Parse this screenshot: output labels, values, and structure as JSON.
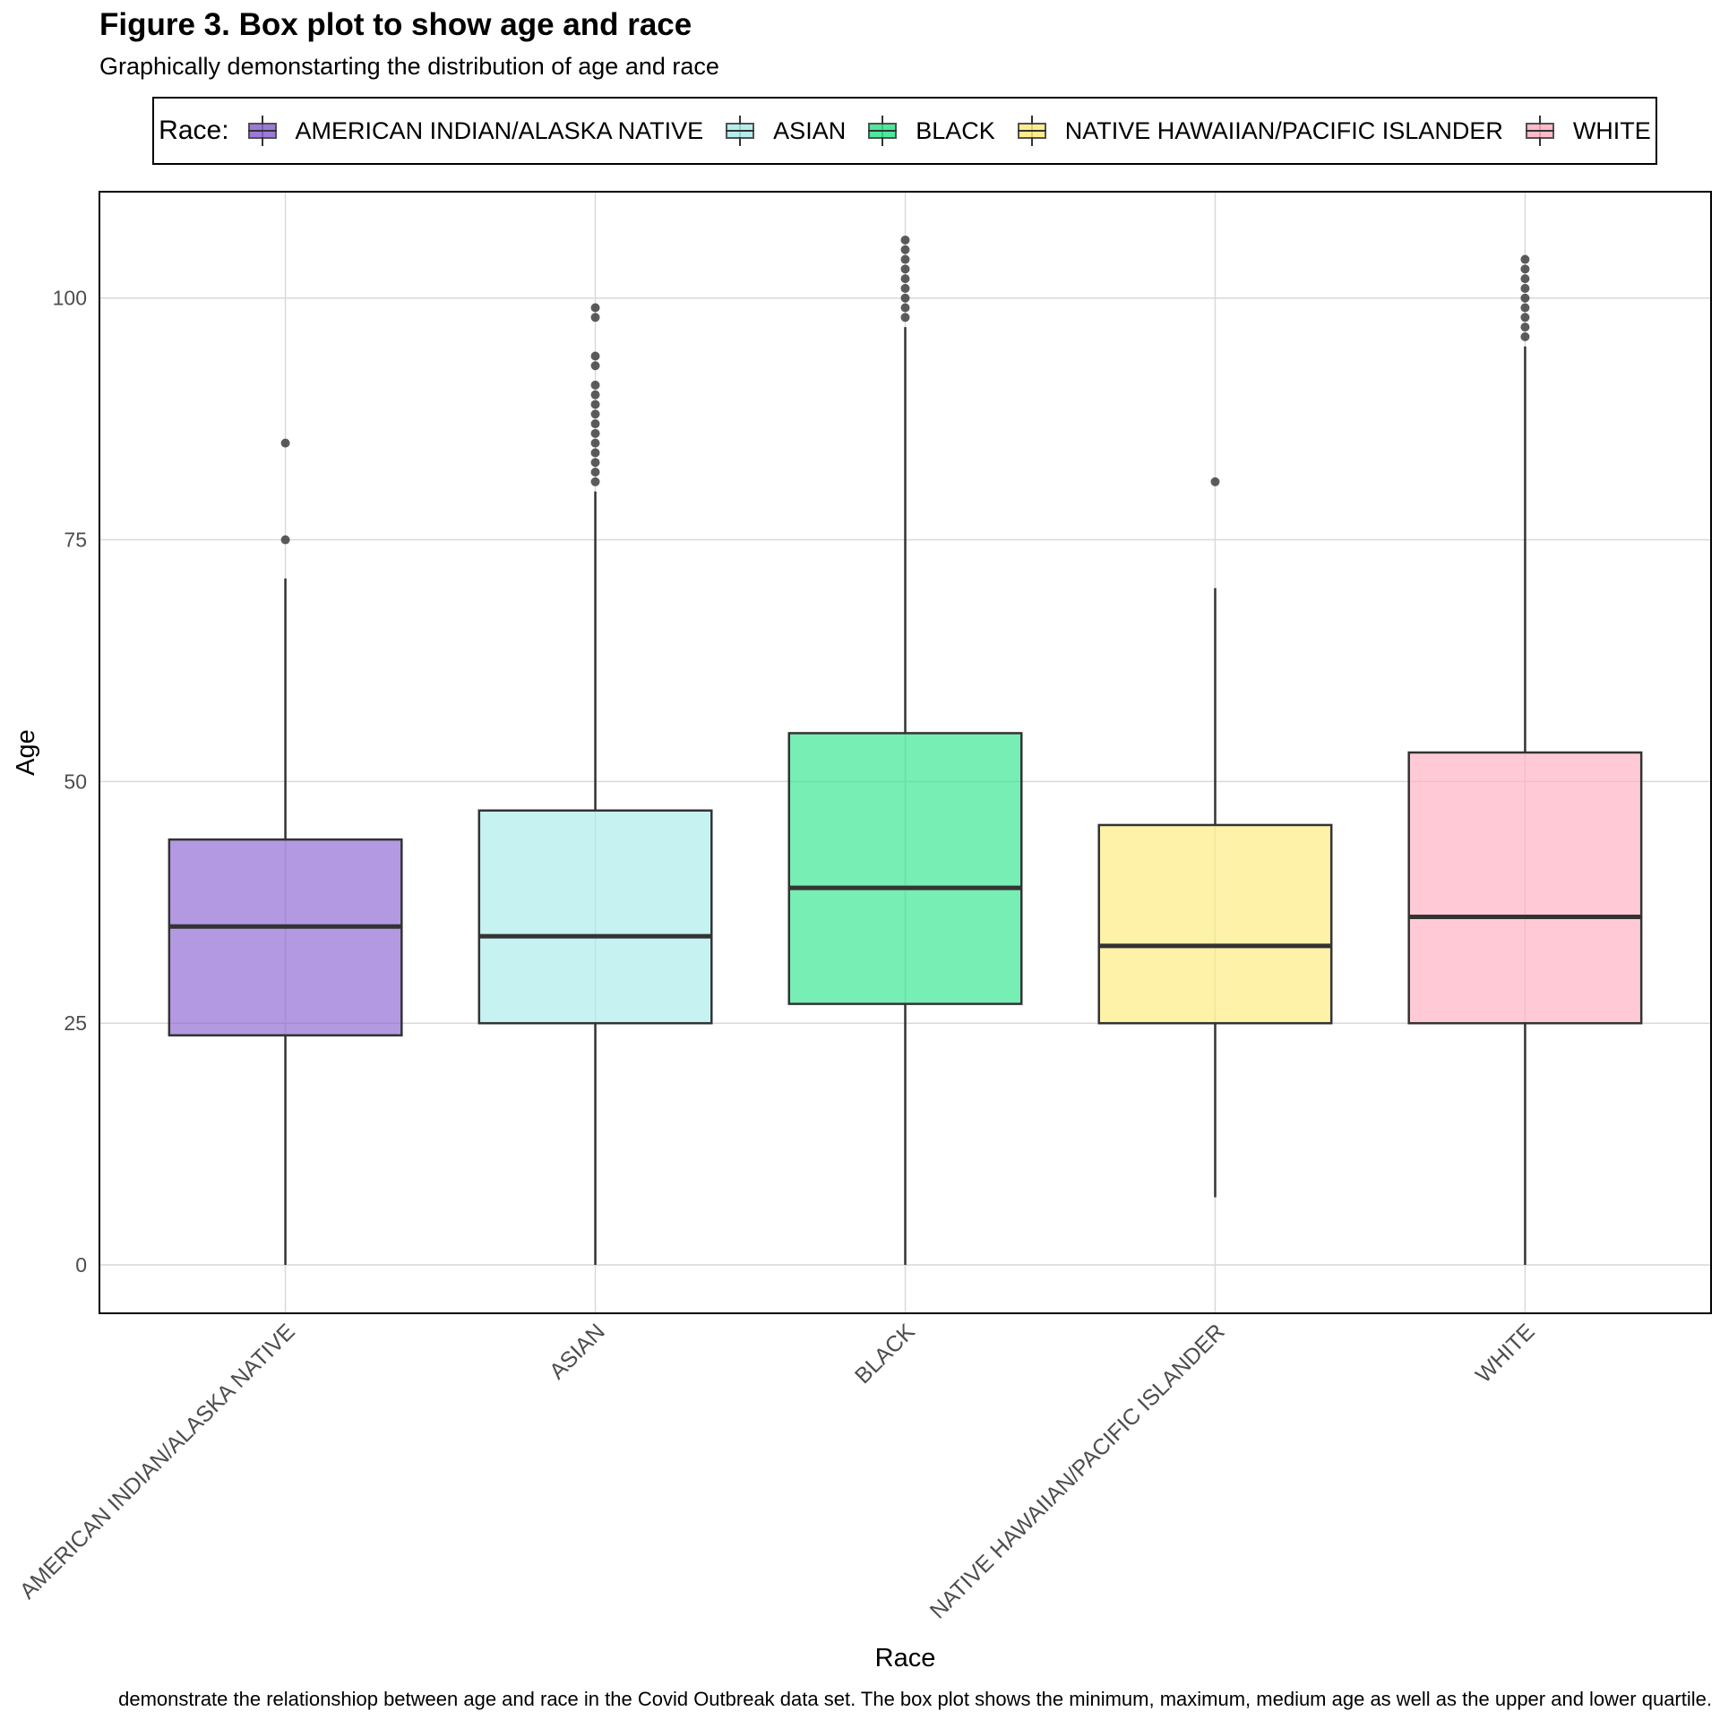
{
  "title": "Figure 3. Box plot to show age and race",
  "subtitle": "Graphically demonstarting the distribution of age and race",
  "caption": "demonstrate the relationshiop between age and race in the Covid Outbreak data set. The box plot shows the minimum, maximum, medium age as well as the upper and lower quartile.",
  "legend": {
    "title": "Race:",
    "items": [
      {
        "label": "AMERICAN INDIAN/ALASKA NATIVE",
        "color": "#8a63d2"
      },
      {
        "label": "ASIAN",
        "color": "#a8ebe9"
      },
      {
        "label": "BLACK",
        "color": "#2ee58a"
      },
      {
        "label": "NATIVE HAWAIIAN/PACIFIC ISLANDER",
        "color": "#fde979"
      },
      {
        "label": "WHITE",
        "color": "#ffaebf"
      }
    ]
  },
  "chart_data": {
    "type": "boxplot",
    "title": "Figure 3. Box plot to show age and race",
    "subtitle": "Graphically demonstarting the distribution of age and race",
    "xlabel": "Race",
    "ylabel": "Age",
    "ylim": [
      -5,
      111
    ],
    "yticks": [
      0,
      25,
      50,
      75,
      100
    ],
    "grid": true,
    "legend_position": "top",
    "categories": [
      "AMERICAN INDIAN/ALASKA NATIVE",
      "ASIAN",
      "BLACK",
      "NATIVE HAWAIIAN/PACIFIC ISLANDER",
      "WHITE"
    ],
    "boxes": [
      {
        "category": "AMERICAN INDIAN/ALASKA NATIVE",
        "min": 0,
        "q1": 23.75,
        "median": 35,
        "q3": 44,
        "max": 71,
        "outliers": [
          75,
          85
        ],
        "color": "#8a63d2"
      },
      {
        "category": "ASIAN",
        "min": 0,
        "q1": 25,
        "median": 34,
        "q3": 47,
        "max": 80,
        "outliers": [
          81,
          82,
          83,
          84,
          85,
          86,
          87,
          88,
          89,
          90,
          91,
          93,
          94,
          98,
          99
        ],
        "color": "#a8ebe9"
      },
      {
        "category": "BLACK",
        "min": 0,
        "q1": 27,
        "median": 39,
        "q3": 55,
        "max": 97,
        "outliers": [
          98,
          99,
          100,
          101,
          102,
          103,
          104,
          105,
          106
        ],
        "color": "#2ee58a"
      },
      {
        "category": "NATIVE HAWAIIAN/PACIFIC ISLANDER",
        "min": 7,
        "q1": 25,
        "median": 33,
        "q3": 45.5,
        "max": 70,
        "outliers": [
          81
        ],
        "color": "#fde979"
      },
      {
        "category": "WHITE",
        "min": 0,
        "q1": 25,
        "median": 36,
        "q3": 53,
        "max": 95,
        "outliers": [
          96,
          97,
          98,
          99,
          100,
          101,
          102,
          103,
          104
        ],
        "color": "#ffaebf"
      }
    ]
  }
}
